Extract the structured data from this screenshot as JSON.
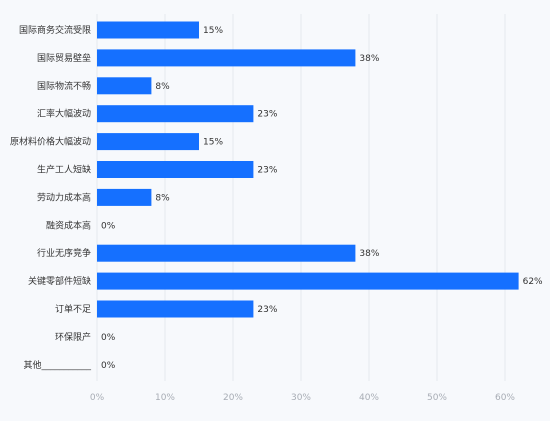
{
  "chart_data": {
    "type": "bar",
    "orientation": "horizontal",
    "categories": [
      "国际商务交流受限",
      "国际贸易壁垒",
      "国际物流不畅",
      "汇率大幅波动",
      "原材料价格大幅波动",
      "生产工人短缺",
      "劳动力成本高",
      "融资成本高",
      "行业无序竞争",
      "关键零部件短缺",
      "订单不足",
      "环保限产",
      "其他___________"
    ],
    "values": [
      15,
      38,
      8,
      23,
      15,
      23,
      8,
      0,
      38,
      62,
      23,
      0,
      0
    ],
    "value_labels": [
      "15%",
      "38%",
      "8%",
      "23%",
      "15%",
      "23%",
      "8%",
      "0%",
      "38%",
      "62%",
      "23%",
      "0%",
      "0%"
    ],
    "x_ticks": [
      "0%",
      "10%",
      "20%",
      "30%",
      "40%",
      "50%",
      "60%"
    ],
    "xlim": [
      0,
      62
    ],
    "grid": "vertical",
    "bar_color": "#1570ff"
  }
}
